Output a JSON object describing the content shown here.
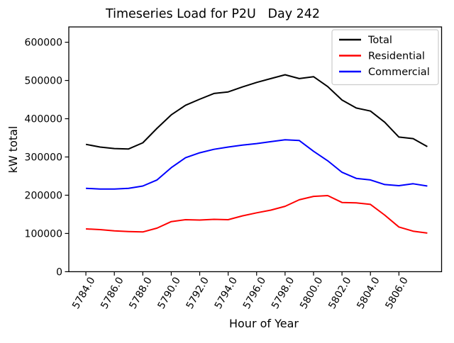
{
  "chart_data": {
    "type": "line",
    "title": "Timeseries Load for P2U   Day 242",
    "xlabel": "Hour of Year",
    "ylabel": "kW total",
    "grid": false,
    "xlim": [
      5782.8,
      5809.0
    ],
    "ylim": [
      0,
      640000
    ],
    "x": [
      5784,
      5785,
      5786,
      5787,
      5788,
      5789,
      5790,
      5791,
      5792,
      5793,
      5794,
      5795,
      5796,
      5797,
      5798,
      5799,
      5800,
      5801,
      5802,
      5803,
      5804,
      5805,
      5806,
      5807,
      5808
    ],
    "series": [
      {
        "name": "Total",
        "color": "#000000",
        "values": [
          333000,
          326000,
          322000,
          321000,
          337000,
          375000,
          410000,
          435000,
          451000,
          466000,
          470000,
          483000,
          495000,
          505000,
          515000,
          505000,
          510000,
          484000,
          449000,
          428000,
          420000,
          391000,
          352000,
          348000,
          327000
        ]
      },
      {
        "name": "Residential",
        "color": "#ff0000",
        "values": [
          112000,
          110000,
          107000,
          105000,
          104000,
          114000,
          131000,
          136000,
          135000,
          137000,
          136000,
          146000,
          154000,
          161000,
          171000,
          188000,
          197000,
          199000,
          181000,
          180000,
          176000,
          148000,
          117000,
          106000,
          101000
        ]
      },
      {
        "name": "Commercial",
        "color": "#0000ff",
        "values": [
          218000,
          216000,
          216000,
          218000,
          224000,
          240000,
          272000,
          298000,
          311000,
          320000,
          326000,
          331000,
          335000,
          340000,
          345000,
          343000,
          315000,
          290000,
          260000,
          244000,
          240000,
          228000,
          225000,
          230000,
          224000
        ]
      }
    ],
    "x_tick_values": [
      5784,
      5786,
      5788,
      5790,
      5792,
      5794,
      5796,
      5798,
      5800,
      5802,
      5804,
      5806
    ],
    "x_tick_labels": [
      "5784.0",
      "5786.0",
      "5788.0",
      "5790.0",
      "5792.0",
      "5794.0",
      "5796.0",
      "5798.0",
      "5800.0",
      "5802.0",
      "5804.0",
      "5806.0"
    ],
    "y_tick_values": [
      0,
      100000,
      200000,
      300000,
      400000,
      500000,
      600000
    ],
    "y_tick_labels": [
      "0",
      "100000",
      "200000",
      "300000",
      "400000",
      "500000",
      "600000"
    ],
    "legend": {
      "position": "upper right",
      "entries": [
        "Total",
        "Residential",
        "Commercial"
      ],
      "border_color": "#cccccc",
      "background": "#ffffff"
    }
  }
}
